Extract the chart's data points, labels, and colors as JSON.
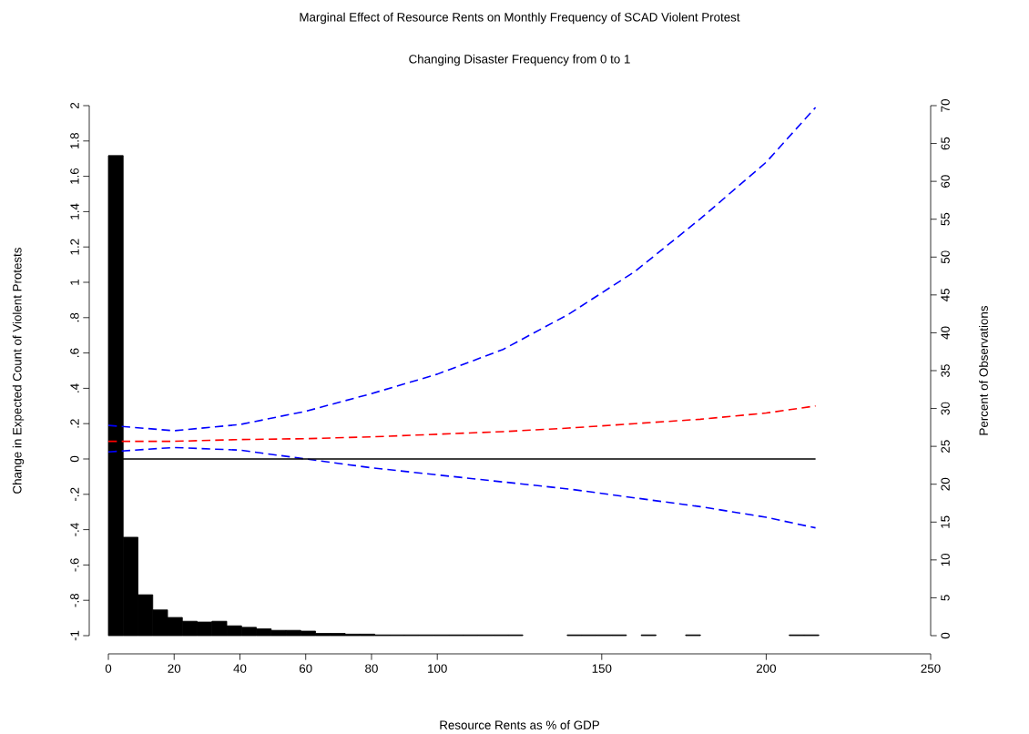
{
  "chart_data": {
    "type": "line",
    "title": "Marginal Effect of Resource Rents on Monthly Frequency of SCAD Violent Protest",
    "subtitle": "Changing Disaster Frequency from 0 to 1",
    "xlabel": "Resource Rents as % of GDP",
    "ylabel": "Change in Expected Count of Violent Protests",
    "y2label": "Percent of Observations",
    "x": [
      0,
      20,
      40,
      60,
      80,
      100,
      120,
      140,
      160,
      180,
      200,
      215
    ],
    "series": [
      {
        "type": "histogram",
        "axis": "y2",
        "color": "#000000",
        "bins": [
          0,
          4.5,
          9,
          13.5,
          18,
          22.5,
          27,
          31.5,
          36,
          40.5,
          45,
          49.5,
          54,
          58.5,
          63,
          67.5,
          72,
          76.5,
          81,
          85.5,
          90,
          94.5,
          99,
          103.5,
          108,
          112.5,
          117,
          121.5,
          126,
          130.5,
          135,
          139.5,
          144,
          148.5,
          153,
          157.5,
          162,
          166.5,
          171,
          175.5,
          180,
          184.5,
          189,
          193.5,
          198,
          202.5,
          207,
          211.5,
          216
        ],
        "values": [
          63.4,
          13.0,
          5.4,
          3.4,
          2.4,
          1.9,
          1.8,
          1.9,
          1.3,
          1.1,
          0.9,
          0.7,
          0.7,
          0.6,
          0.3,
          0.3,
          0.2,
          0.2,
          0.1,
          0.1,
          0.1,
          0.1,
          0.1,
          0.1,
          0.1,
          0.1,
          0.1,
          0.1,
          0,
          0,
          0,
          0.1,
          0.1,
          0.1,
          0.1,
          0,
          0.1,
          0,
          0,
          0.1,
          0,
          0,
          0,
          0,
          0,
          0,
          0.1,
          0.1
        ]
      },
      {
        "color": "#0000ff",
        "line_style": "dashed",
        "values": [
          0.19,
          0.16,
          0.195,
          0.27,
          0.37,
          0.48,
          0.62,
          0.82,
          1.06,
          1.36,
          1.68,
          1.99
        ]
      },
      {
        "color": "#ff0000",
        "line_style": "dashed",
        "values": [
          0.1,
          0.1,
          0.11,
          0.115,
          0.125,
          0.14,
          0.155,
          0.175,
          0.2,
          0.225,
          0.26,
          0.3
        ]
      },
      {
        "color": "#0000ff",
        "line_style": "dashed",
        "values": [
          0.04,
          0.065,
          0.05,
          0.0,
          -0.05,
          -0.09,
          -0.13,
          -0.17,
          -0.22,
          -0.27,
          -0.33,
          -0.39
        ]
      },
      {
        "color": "#000000",
        "line_style": "solid",
        "x": [
          0,
          215
        ],
        "values": [
          0,
          0
        ]
      }
    ],
    "xlim": [
      0,
      250
    ],
    "xticks": [
      0,
      20,
      40,
      60,
      80,
      100,
      150,
      200,
      250
    ],
    "ylim": [
      -1,
      2
    ],
    "yticks": [
      -1,
      {
        "value": -0.8,
        "label": "-.8"
      },
      {
        "value": -0.6,
        "label": "-.6"
      },
      {
        "value": -0.4,
        "label": "-.4"
      },
      {
        "value": -0.2,
        "label": "-.2"
      },
      0,
      {
        "value": 0.2,
        "label": ".2"
      },
      {
        "value": 0.4,
        "label": ".4"
      },
      {
        "value": 0.6,
        "label": ".6"
      },
      {
        "value": 0.8,
        "label": ".8"
      },
      1,
      1.2,
      1.4,
      1.6,
      1.8,
      2
    ],
    "y2lim": [
      0,
      70
    ],
    "y2ticks": [
      0,
      5,
      10,
      15,
      20,
      25,
      30,
      35,
      40,
      45,
      50,
      55,
      60,
      65,
      70
    ]
  }
}
